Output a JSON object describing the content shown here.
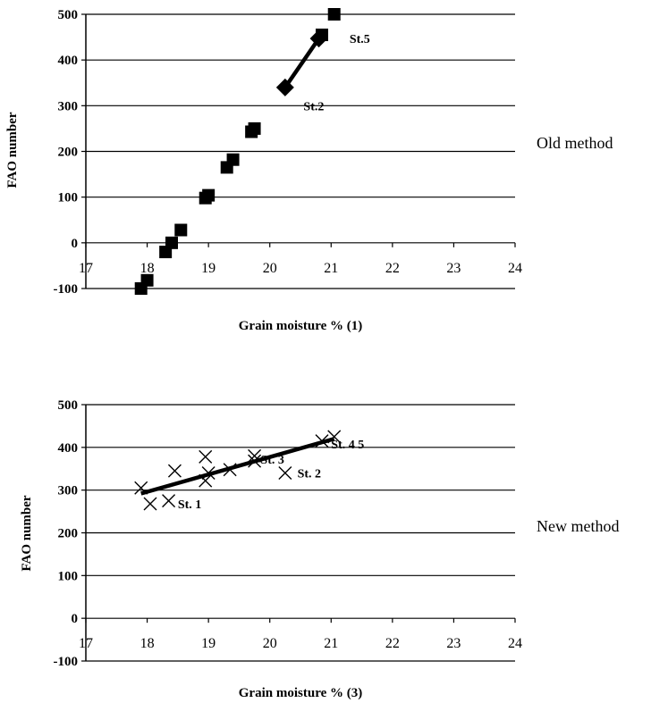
{
  "chart_data": [
    {
      "type": "scatter",
      "xlabel": "Grain moisture % (1)",
      "ylabel": "FAO number",
      "side_label": "Old method",
      "xlim": [
        17,
        24
      ],
      "ylim": [
        -100,
        500
      ],
      "x_ticks": [
        "17",
        "18",
        "19",
        "20",
        "21",
        "22",
        "23",
        "24"
      ],
      "y_ticks": [
        "-100",
        "0",
        "100",
        "200",
        "300",
        "400",
        "500"
      ],
      "grid": true,
      "marker": "square",
      "points": [
        {
          "x": 17.9,
          "y": -100
        },
        {
          "x": 18.0,
          "y": -82
        },
        {
          "x": 18.3,
          "y": -20
        },
        {
          "x": 18.4,
          "y": 0
        },
        {
          "x": 18.55,
          "y": 28
        },
        {
          "x": 18.95,
          "y": 98
        },
        {
          "x": 19.0,
          "y": 104
        },
        {
          "x": 19.3,
          "y": 165
        },
        {
          "x": 19.4,
          "y": 182
        },
        {
          "x": 19.7,
          "y": 243
        },
        {
          "x": 19.75,
          "y": 250
        },
        {
          "x": 20.85,
          "y": 455
        },
        {
          "x": 21.05,
          "y": 500
        }
      ],
      "trend": {
        "x": [
          20.25,
          20.8,
          20.88
        ],
        "y": [
          340,
          447,
          457
        ]
      },
      "highlight": [
        {
          "x": 20.25,
          "y": 340
        },
        {
          "x": 20.8,
          "y": 447
        }
      ],
      "annotations": [
        {
          "text": "St.5",
          "x": 21.3,
          "y": 447
        },
        {
          "text": "St.2",
          "x": 20.55,
          "y": 300
        }
      ]
    },
    {
      "type": "scatter",
      "xlabel": "Grain moisture % (3)",
      "ylabel": "FAO number",
      "side_label": "New method",
      "xlim": [
        17,
        24
      ],
      "ylim": [
        -100,
        500
      ],
      "x_ticks": [
        "17",
        "18",
        "19",
        "20",
        "21",
        "22",
        "23",
        "24"
      ],
      "y_ticks": [
        "-100",
        "0",
        "100",
        "200",
        "300",
        "400",
        "500"
      ],
      "grid": true,
      "marker": "x",
      "points": [
        {
          "x": 17.9,
          "y": 305
        },
        {
          "x": 18.05,
          "y": 268
        },
        {
          "x": 18.35,
          "y": 275
        },
        {
          "x": 18.45,
          "y": 345
        },
        {
          "x": 18.95,
          "y": 378
        },
        {
          "x": 18.95,
          "y": 322
        },
        {
          "x": 19.0,
          "y": 340
        },
        {
          "x": 19.35,
          "y": 348
        },
        {
          "x": 19.75,
          "y": 380
        },
        {
          "x": 19.75,
          "y": 368
        },
        {
          "x": 20.25,
          "y": 340
        },
        {
          "x": 20.85,
          "y": 415
        },
        {
          "x": 21.05,
          "y": 425
        }
      ],
      "trend": {
        "x": [
          17.9,
          21.05
        ],
        "y": [
          292,
          420
        ]
      },
      "annotations": [
        {
          "text": "St. 1",
          "x": 18.5,
          "y": 268
        },
        {
          "text": "St. 3",
          "x": 19.85,
          "y": 372
        },
        {
          "text": "St. 2",
          "x": 20.45,
          "y": 340
        },
        {
          "text": "St. 4 5",
          "x": 21.0,
          "y": 408
        }
      ]
    }
  ]
}
